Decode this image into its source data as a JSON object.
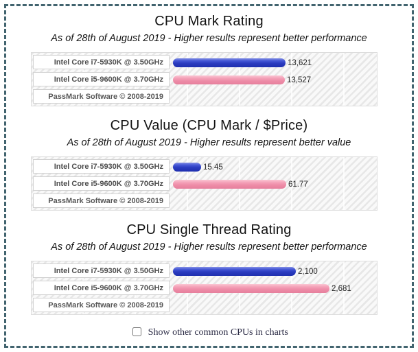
{
  "page": {
    "border_color": "#42646f",
    "checkbox": {
      "label": "Show other common CPUs in charts",
      "checked": false
    }
  },
  "chart_data": [
    {
      "type": "bar",
      "title": "CPU Mark Rating",
      "subtitle": "As of 28th of August 2019 - Higher results represent better performance",
      "categories": [
        "Intel Core i7-5930K @ 3.50GHz",
        "Intel Core i5-9600K @ 3.70GHz"
      ],
      "values": [
        13621,
        13527
      ],
      "value_labels": [
        "13,621",
        "13,527"
      ],
      "series_colors": [
        "#2b3cc0",
        "#ee8ca8"
      ],
      "xmax": 25000,
      "legend_position": "none",
      "grid": "faint-vertical",
      "footer": "PassMark Software © 2008-2019"
    },
    {
      "type": "bar",
      "title": "CPU Value (CPU Mark / $Price)",
      "subtitle": "As of 28th of August 2019 - Higher results represent better value",
      "categories": [
        "Intel Core i7-5930K @ 3.50GHz",
        "Intel Core i5-9600K @ 3.70GHz"
      ],
      "values": [
        15.45,
        61.77
      ],
      "value_labels": [
        "15.45",
        "61.77"
      ],
      "series_colors": [
        "#2b3cc0",
        "#ee8ca8"
      ],
      "xmax": 113,
      "legend_position": "none",
      "grid": "faint-vertical",
      "footer": "PassMark Software © 2008-2019"
    },
    {
      "type": "bar",
      "title": "CPU Single Thread Rating",
      "subtitle": "As of 28th of August 2019 - Higher results represent better performance",
      "categories": [
        "Intel Core i7-5930K @ 3.50GHz",
        "Intel Core i5-9600K @ 3.70GHz"
      ],
      "values": [
        2100,
        2681
      ],
      "value_labels": [
        "2,100",
        "2,681"
      ],
      "series_colors": [
        "#2b3cc0",
        "#ee8ca8"
      ],
      "xmax": 3540,
      "legend_position": "none",
      "grid": "faint-vertical",
      "footer": "PassMark Software © 2008-2019"
    }
  ]
}
